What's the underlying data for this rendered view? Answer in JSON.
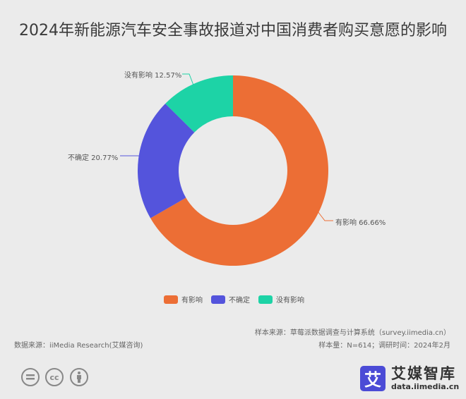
{
  "title": "2024年新能源汽车安全事故报道对中国消费者购买意愿的影响",
  "chart_data": {
    "type": "pie",
    "subtype": "donut",
    "title": "2024年新能源汽车安全事故报道对中国消费者购买意愿的影响",
    "categories": [
      "有影响",
      "不确定",
      "没有影响"
    ],
    "values": [
      66.66,
      20.77,
      12.57
    ],
    "unit": "%",
    "colors": [
      "#ec6e35",
      "#5454dc",
      "#1dd3a6"
    ],
    "labels": [
      "有影响 66.66%",
      "不确定 20.77%",
      "没有影响 12.57%"
    ],
    "start_angle": "12 o'clock",
    "direction": "clockwise",
    "legend_position": "bottom"
  },
  "legend": [
    {
      "label": "有影响",
      "color": "#ec6e35"
    },
    {
      "label": "不确定",
      "color": "#5454dc"
    },
    {
      "label": "没有影响",
      "color": "#1dd3a6"
    }
  ],
  "slice_labels": {
    "yes": "有影响 66.66%",
    "unsure": "不确定 20.77%",
    "no": "没有影响 12.57%"
  },
  "footer": {
    "sample_source": "样本来源：草莓派数据调查与计算系统（survey.iimedia.cn）",
    "sample_info": "样本量：N=614；调研时间：2024年2月",
    "data_source": "数据来源：iiMedia Research(艾媒咨询)"
  },
  "license_icons": [
    "nd-icon",
    "cc-icon",
    "by-icon"
  ],
  "logo": {
    "mark": "艾",
    "name": "艾媒智库",
    "url": "data.iimedia.cn",
    "color": "#4b4bd6"
  }
}
